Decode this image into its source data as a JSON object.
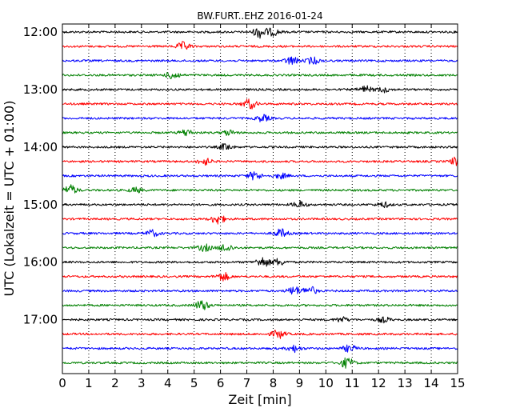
{
  "chart_data": {
    "type": "line",
    "title": "BW.FURT..EHZ 2016-01-24",
    "xlabel": "Zeit  [min]",
    "ylabel": "UTC (Lokalzeit = UTC + 01:00)",
    "xlim": [
      0,
      15
    ],
    "x_ticks": [
      "0",
      "1",
      "2",
      "3",
      "4",
      "5",
      "6",
      "7",
      "8",
      "9",
      "10",
      "11",
      "12",
      "13",
      "14",
      "15"
    ],
    "y_tick_labels": [
      "12:00",
      "13:00",
      "14:00",
      "15:00",
      "16:00",
      "17:00"
    ],
    "grid": "x",
    "colors": [
      "#000000",
      "#ff0000",
      "#0000ff",
      "#008000"
    ],
    "traces": [
      {
        "start": "12:00",
        "color": "#000000",
        "events": [
          [
            7.5,
            7
          ],
          [
            8.0,
            4
          ]
        ]
      },
      {
        "start": "12:15",
        "color": "#ff0000",
        "events": [
          [
            4.6,
            5
          ]
        ]
      },
      {
        "start": "12:30",
        "color": "#0000ff",
        "events": [
          [
            8.7,
            5
          ],
          [
            9.5,
            4
          ]
        ]
      },
      {
        "start": "12:45",
        "color": "#008000",
        "events": [
          [
            4.2,
            5
          ]
        ]
      },
      {
        "start": "13:00",
        "color": "#000000",
        "events": [
          [
            11.5,
            4
          ],
          [
            12.2,
            3
          ]
        ]
      },
      {
        "start": "13:15",
        "color": "#ff0000",
        "events": [
          [
            7.1,
            6
          ]
        ]
      },
      {
        "start": "13:30",
        "color": "#0000ff",
        "events": [
          [
            7.6,
            4
          ]
        ]
      },
      {
        "start": "13:45",
        "color": "#008000",
        "events": [
          [
            4.7,
            4
          ],
          [
            6.3,
            3
          ]
        ]
      },
      {
        "start": "14:00",
        "color": "#000000",
        "events": [
          [
            6.2,
            4
          ]
        ]
      },
      {
        "start": "14:15",
        "color": "#ff0000",
        "events": [
          [
            5.4,
            4
          ],
          [
            15.0,
            6
          ]
        ]
      },
      {
        "start": "14:30",
        "color": "#0000ff",
        "events": [
          [
            7.3,
            5
          ],
          [
            8.3,
            3
          ]
        ]
      },
      {
        "start": "14:45",
        "color": "#008000",
        "events": [
          [
            0.3,
            6
          ],
          [
            2.8,
            3
          ]
        ]
      },
      {
        "start": "15:00",
        "color": "#000000",
        "events": [
          [
            9.0,
            4
          ],
          [
            12.2,
            3
          ]
        ]
      },
      {
        "start": "15:15",
        "color": "#ff0000",
        "events": [
          [
            5.9,
            6
          ]
        ]
      },
      {
        "start": "15:30",
        "color": "#0000ff",
        "events": [
          [
            3.4,
            4
          ],
          [
            8.3,
            5
          ]
        ]
      },
      {
        "start": "15:45",
        "color": "#008000",
        "events": [
          [
            5.4,
            4
          ],
          [
            6.2,
            5
          ]
        ]
      },
      {
        "start": "16:00",
        "color": "#000000",
        "events": [
          [
            7.6,
            6
          ],
          [
            8.2,
            4
          ]
        ]
      },
      {
        "start": "16:15",
        "color": "#ff0000",
        "events": [
          [
            6.1,
            5
          ]
        ]
      },
      {
        "start": "16:30",
        "color": "#0000ff",
        "events": [
          [
            8.8,
            5
          ],
          [
            9.4,
            5
          ]
        ]
      },
      {
        "start": "16:45",
        "color": "#008000",
        "events": [
          [
            5.3,
            6
          ]
        ]
      },
      {
        "start": "17:00",
        "color": "#000000",
        "events": [
          [
            10.6,
            3
          ],
          [
            12.2,
            3
          ]
        ]
      },
      {
        "start": "17:15",
        "color": "#ff0000",
        "events": [
          [
            8.2,
            5
          ]
        ]
      },
      {
        "start": "17:30",
        "color": "#0000ff",
        "events": [
          [
            8.8,
            4
          ],
          [
            10.9,
            4
          ]
        ]
      },
      {
        "start": "17:45",
        "color": "#008000",
        "events": [
          [
            10.8,
            6
          ]
        ]
      }
    ]
  }
}
